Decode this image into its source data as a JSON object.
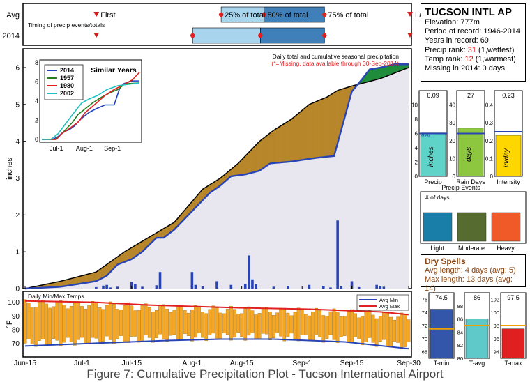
{
  "timing": {
    "row_labels": [
      "Avg",
      "2014"
    ],
    "subtitle": "Timing of precip events/totals",
    "labels": [
      "First",
      "25% of total",
      "50% of total",
      "75% of total",
      "Last"
    ],
    "avg_days": {
      "first": 20,
      "p25": 55,
      "p50": 67,
      "p75": 84,
      "last": 108
    },
    "y2014_days": {
      "first": 20,
      "p25": 47,
      "p50": 66,
      "p75": 84,
      "last": 108
    }
  },
  "station": {
    "name": "TUCSON INTL AP",
    "elevation": "Elevation: 777m",
    "period": "Period of record: 1946-2014",
    "years": "Years in record: 69",
    "precip_rank_label": "Precip rank: ",
    "precip_rank": "31",
    "precip_rank_note": " (1,wettest)",
    "temp_rank_label": "Temp rank: ",
    "temp_rank": "12",
    "temp_rank_note": " (1,warmest)",
    "missing": "Missing in 2014: 0 days"
  },
  "main_chart": {
    "ylabel": "inches",
    "note1": "Daily total and cumulative seasonal precipitation",
    "note2": "(*=Missing, data available through 30-Sep-2014)",
    "x_ticks": [
      "Jun-15",
      "Jul-1",
      "Jul-15",
      "Aug-1",
      "Aug-15",
      "Sep-1",
      "Sep-15",
      "Sep-30"
    ],
    "y_ticks": [
      "0",
      "1",
      "2",
      "3",
      "4",
      "5",
      "6"
    ]
  },
  "inset": {
    "title": "Similar Years",
    "legend": [
      "2014",
      "1957",
      "1980",
      "2002"
    ],
    "colors": [
      "#2040c0",
      "#208020",
      "#e02020",
      "#20c0c0"
    ],
    "x_ticks": [
      "Jul-1",
      "Aug-1",
      "Sep-1"
    ],
    "y_ticks": [
      "0",
      "2",
      "4",
      "6",
      "8"
    ]
  },
  "temps": {
    "title": "Daily Min/Max Temps",
    "legend": [
      "Avg Min",
      "Avg Max"
    ],
    "ylabel": "°F",
    "y_ticks": [
      "100",
      "90",
      "80",
      "70"
    ]
  },
  "precip_events": {
    "title": "Precip Events",
    "bars": [
      {
        "label": "Precip",
        "value_text": "6.09",
        "value": 6.09,
        "avg": 6.0,
        "max": 12,
        "ticks": [
          "0",
          "2",
          "4",
          "6",
          "8",
          "10"
        ],
        "color": "#5fd3c8",
        "unit": "inches",
        "avg_label": "avg"
      },
      {
        "label": "Rain Days",
        "value_text": "27",
        "value": 27,
        "avg": 24,
        "max": 48,
        "ticks": [
          "0",
          "10",
          "20",
          "30",
          "40"
        ],
        "color": "#8dc63f",
        "unit": "days"
      },
      {
        "label": "Intensity",
        "value_text": "0.23",
        "value": 0.23,
        "avg": 0.25,
        "max": 0.48,
        "ticks": [
          "0",
          "0.1",
          "0.2",
          "0.3",
          "0.4"
        ],
        "color": "#ffd700",
        "unit": "in/day"
      }
    ]
  },
  "day_types": {
    "title": "# of days",
    "bars": [
      {
        "label": "Light",
        "color": "#1a7fa8"
      },
      {
        "label": "Moderate",
        "color": "#556b2f"
      },
      {
        "label": "Heavy",
        "color": "#f05a28"
      }
    ]
  },
  "dry_spells": {
    "title": "Dry Spells",
    "avg": "Avg length: 4 days (avg: 5)",
    "max": "Max length: 13 days (avg: 14)"
  },
  "temp_bars": [
    {
      "label": "T-min",
      "value_text": "74.5",
      "value": 74.5,
      "avg": 71.5,
      "min": 67,
      "max": 77,
      "ticks": [
        "68",
        "70",
        "72",
        "74",
        "76"
      ],
      "color": "#3355aa"
    },
    {
      "label": "T-avg",
      "value_text": "86",
      "value": 86,
      "avg": 85,
      "min": 80,
      "max": 90,
      "ticks": [
        "80",
        "82",
        "84",
        "86",
        "88"
      ],
      "color": "#5fc8c8"
    },
    {
      "label": "T-max",
      "value_text": "97.5",
      "value": 97.5,
      "avg": 98,
      "min": 93,
      "max": 103,
      "ticks": [
        "94",
        "96",
        "98",
        "100",
        "102"
      ],
      "color": "#e02020"
    }
  ],
  "caption": "Figure 7: Cumulative Precipitation Plot - Tucson International Airport",
  "chart_data": {
    "type": "area",
    "title": "Daily total and cumulative seasonal precipitation",
    "ylabel": "inches",
    "xlim_days": [
      0,
      108
    ],
    "ylim": [
      0,
      6.4
    ],
    "cumulative_2014": [
      [
        0,
        0
      ],
      [
        10,
        0.05
      ],
      [
        20,
        0.2
      ],
      [
        23,
        0.35
      ],
      [
        26,
        0.65
      ],
      [
        30,
        0.8
      ],
      [
        33,
        1.0
      ],
      [
        37,
        1.38
      ],
      [
        39,
        1.38
      ],
      [
        42,
        1.6
      ],
      [
        46,
        2.0
      ],
      [
        49,
        2.3
      ],
      [
        52,
        2.6
      ],
      [
        55,
        2.8
      ],
      [
        58,
        3.05
      ],
      [
        62,
        3.1
      ],
      [
        66,
        3.2
      ],
      [
        69,
        3.4
      ],
      [
        75,
        3.45
      ],
      [
        82,
        3.55
      ],
      [
        87,
        3.6
      ],
      [
        92,
        5.35
      ],
      [
        95,
        5.7
      ],
      [
        97,
        5.95
      ],
      [
        100,
        6.0
      ],
      [
        104,
        6.09
      ],
      [
        108,
        6.09
      ]
    ],
    "cumulative_avg": [
      [
        0,
        0
      ],
      [
        10,
        0.2
      ],
      [
        20,
        0.45
      ],
      [
        28,
        1.0
      ],
      [
        35,
        1.4
      ],
      [
        42,
        1.8
      ],
      [
        50,
        2.7
      ],
      [
        55,
        3.0
      ],
      [
        60,
        3.4
      ],
      [
        66,
        4.0
      ],
      [
        70,
        4.3
      ],
      [
        75,
        4.6
      ],
      [
        80,
        5.0
      ],
      [
        85,
        5.2
      ],
      [
        88,
        5.38
      ],
      [
        92,
        5.5
      ],
      [
        96,
        5.6
      ],
      [
        100,
        5.7
      ],
      [
        104,
        5.85
      ],
      [
        108,
        6.0
      ]
    ],
    "daily_2014": [
      [
        20,
        0.04
      ],
      [
        22,
        0.08
      ],
      [
        23,
        0.1
      ],
      [
        24,
        0.03
      ],
      [
        26,
        0.05
      ],
      [
        30,
        0.18
      ],
      [
        31,
        0.12
      ],
      [
        33,
        0.05
      ],
      [
        37,
        0.09
      ],
      [
        38,
        0.45
      ],
      [
        47,
        0.45
      ],
      [
        48,
        0.1
      ],
      [
        50,
        0.06
      ],
      [
        54,
        0.2
      ],
      [
        58,
        0.1
      ],
      [
        62,
        0.12
      ],
      [
        63,
        0.9
      ],
      [
        64,
        0.25
      ],
      [
        65,
        0.12
      ],
      [
        70,
        0.05
      ],
      [
        74,
        0.07
      ],
      [
        80,
        0.1
      ],
      [
        84,
        0.07
      ],
      [
        86,
        0.03
      ],
      [
        88,
        1.85
      ],
      [
        89,
        0.06
      ],
      [
        92,
        0.2
      ],
      [
        94,
        0.04
      ],
      [
        99,
        0.1
      ],
      [
        100,
        0.07
      ],
      [
        101,
        0.05
      ]
    ],
    "temp_avg_min": [
      [
        0,
        68
      ],
      [
        20,
        70
      ],
      [
        40,
        72
      ],
      [
        55,
        73
      ],
      [
        70,
        73
      ],
      [
        90,
        71
      ],
      [
        108,
        66
      ]
    ],
    "temp_avg_max": [
      [
        0,
        101
      ],
      [
        20,
        100
      ],
      [
        35,
        98
      ],
      [
        60,
        96
      ],
      [
        80,
        95
      ],
      [
        100,
        93
      ],
      [
        108,
        91
      ]
    ]
  }
}
